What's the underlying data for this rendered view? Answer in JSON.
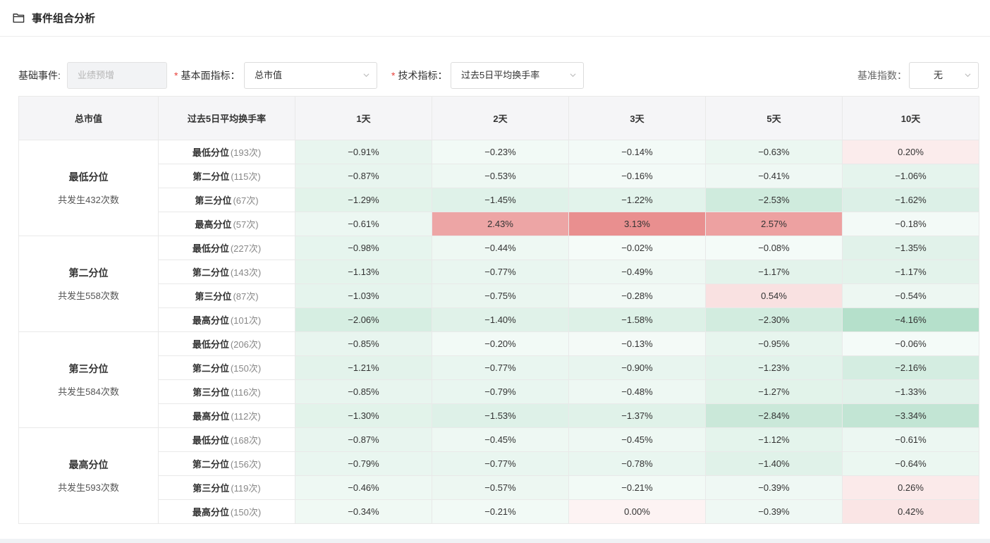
{
  "panel": {
    "title": "事件组合分析",
    "icon": "folder-icon"
  },
  "filters": {
    "base_event_label": "基础事件:",
    "base_event_value": "业绩预增",
    "required_mark": "*",
    "fundamental_label": "基本面指标：",
    "fundamental_value": "总市值",
    "technical_label": "技术指标：",
    "technical_value": "过去5日平均换手率",
    "benchmark_label": "基准指数：",
    "benchmark_value": "无"
  },
  "table": {
    "headers": [
      "总市值",
      "过去5日平均换手率",
      "1天",
      "2天",
      "3天",
      "5天",
      "10天"
    ],
    "groups": [
      {
        "name": "最低分位",
        "count": "共发生432次数",
        "rows": [
          {
            "name": "最低分位",
            "count": "(193次)",
            "values": [
              "-0.91%",
              "-0.23%",
              "-0.14%",
              "-0.63%",
              "0.20%"
            ]
          },
          {
            "name": "第二分位",
            "count": "(115次)",
            "values": [
              "-0.87%",
              "-0.53%",
              "-0.16%",
              "-0.41%",
              "-1.06%"
            ]
          },
          {
            "name": "第三分位",
            "count": "(67次)",
            "values": [
              "-1.29%",
              "-1.45%",
              "-1.22%",
              "-2.53%",
              "-1.62%"
            ]
          },
          {
            "name": "最高分位",
            "count": "(57次)",
            "values": [
              "-0.61%",
              "2.43%",
              "3.13%",
              "2.57%",
              "-0.18%"
            ]
          }
        ]
      },
      {
        "name": "第二分位",
        "count": "共发生558次数",
        "rows": [
          {
            "name": "最低分位",
            "count": "(227次)",
            "values": [
              "-0.98%",
              "-0.44%",
              "-0.02%",
              "-0.08%",
              "-1.35%"
            ]
          },
          {
            "name": "第二分位",
            "count": "(143次)",
            "values": [
              "-1.13%",
              "-0.77%",
              "-0.49%",
              "-1.17%",
              "-1.17%"
            ]
          },
          {
            "name": "第三分位",
            "count": "(87次)",
            "values": [
              "-1.03%",
              "-0.75%",
              "-0.28%",
              "0.54%",
              "-0.54%"
            ]
          },
          {
            "name": "最高分位",
            "count": "(101次)",
            "values": [
              "-2.06%",
              "-1.40%",
              "-1.58%",
              "-2.30%",
              "-4.16%"
            ]
          }
        ]
      },
      {
        "name": "第三分位",
        "count": "共发生584次数",
        "rows": [
          {
            "name": "最低分位",
            "count": "(206次)",
            "values": [
              "-0.85%",
              "-0.20%",
              "-0.13%",
              "-0.95%",
              "-0.06%"
            ]
          },
          {
            "name": "第二分位",
            "count": "(150次)",
            "values": [
              "-1.21%",
              "-0.77%",
              "-0.90%",
              "-1.23%",
              "-2.16%"
            ]
          },
          {
            "name": "第三分位",
            "count": "(116次)",
            "values": [
              "-0.85%",
              "-0.79%",
              "-0.48%",
              "-1.27%",
              "-1.33%"
            ]
          },
          {
            "name": "最高分位",
            "count": "(112次)",
            "values": [
              "-1.30%",
              "-1.53%",
              "-1.37%",
              "-2.84%",
              "-3.34%"
            ]
          }
        ]
      },
      {
        "name": "最高分位",
        "count": "共发生593次数",
        "rows": [
          {
            "name": "最低分位",
            "count": "(168次)",
            "values": [
              "-0.87%",
              "-0.45%",
              "-0.45%",
              "-1.12%",
              "-0.61%"
            ]
          },
          {
            "name": "第二分位",
            "count": "(156次)",
            "values": [
              "-0.79%",
              "-0.77%",
              "-0.78%",
              "-1.40%",
              "-0.64%"
            ]
          },
          {
            "name": "第三分位",
            "count": "(119次)",
            "values": [
              "-0.46%",
              "-0.57%",
              "-0.21%",
              "-0.39%",
              "0.26%"
            ]
          },
          {
            "name": "最高分位",
            "count": "(150次)",
            "values": [
              "-0.34%",
              "-0.21%",
              "0.00%",
              "-0.39%",
              "0.42%"
            ]
          }
        ]
      }
    ]
  },
  "colors": {
    "positive": "#e06464",
    "negative": "#3fae78",
    "header_bg": "#f5f5f7",
    "required": "#e8423c"
  }
}
